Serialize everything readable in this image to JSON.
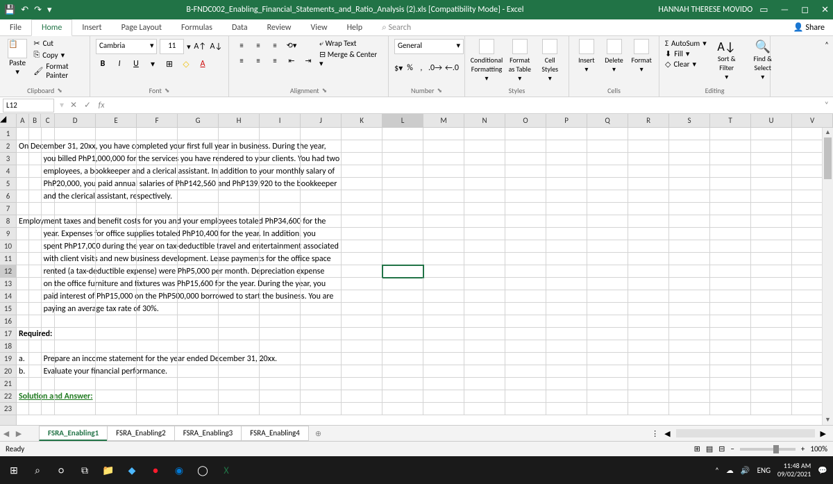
{
  "titlebar": {
    "title": "B-FNDC002_Enabling_Financial_Statements_and_Ratio_Analysis (2).xls  [Compatibility Mode]  -  Excel",
    "user": "HANNAH THERESE MOVIDO"
  },
  "tabs": {
    "items": [
      "File",
      "Home",
      "Insert",
      "Page Layout",
      "Formulas",
      "Data",
      "Review",
      "View",
      "Help"
    ],
    "active": 1,
    "search": "Search",
    "share": "Share"
  },
  "ribbon": {
    "clipboard": {
      "paste": "Paste",
      "cut": "Cut",
      "copy": "Copy",
      "fp": "Format Painter",
      "label": "Clipboard"
    },
    "font": {
      "name": "Cambria",
      "size": "11",
      "label": "Font"
    },
    "alignment": {
      "wrap": "Wrap Text",
      "merge": "Merge & Center",
      "label": "Alignment"
    },
    "number": {
      "format": "General",
      "label": "Number"
    },
    "styles": {
      "cond": "Conditional Formatting",
      "table": "Format as Table",
      "cell": "Cell Styles",
      "label": "Styles"
    },
    "cells": {
      "insert": "Insert",
      "delete": "Delete",
      "format": "Format",
      "label": "Cells"
    },
    "editing": {
      "sum": "AutoSum",
      "fill": "Fill",
      "clear": "Clear",
      "sort": "Sort & Filter",
      "find": "Find & Select",
      "label": "Editing"
    }
  },
  "formula_bar": {
    "cell_ref": "L12"
  },
  "columns": [
    {
      "l": "A",
      "w": 18
    },
    {
      "l": "B",
      "w": 18
    },
    {
      "l": "C",
      "w": 20
    },
    {
      "l": "D",
      "w": 60
    },
    {
      "l": "E",
      "w": 60
    },
    {
      "l": "F",
      "w": 60
    },
    {
      "l": "G",
      "w": 60
    },
    {
      "l": "H",
      "w": 60
    },
    {
      "l": "I",
      "w": 60
    },
    {
      "l": "J",
      "w": 60
    },
    {
      "l": "K",
      "w": 60
    },
    {
      "l": "L",
      "w": 60
    },
    {
      "l": "M",
      "w": 60
    },
    {
      "l": "N",
      "w": 60
    },
    {
      "l": "O",
      "w": 60
    },
    {
      "l": "P",
      "w": 60
    },
    {
      "l": "Q",
      "w": 60
    },
    {
      "l": "R",
      "w": 60
    },
    {
      "l": "S",
      "w": 60
    },
    {
      "l": "T",
      "w": 60
    },
    {
      "l": "U",
      "w": 60
    },
    {
      "l": "V",
      "w": 60
    }
  ],
  "rows": [
    {
      "n": 1,
      "cells": []
    },
    {
      "n": 2,
      "cells": [
        {
          "c": 0,
          "t": "On December 31, 20xx, you have completed your first full year in business.  During the year,"
        }
      ]
    },
    {
      "n": 3,
      "cells": [
        {
          "c": 2,
          "t": "you billed PhP1,000,000 for the services you have rendered to your clients.  You had two"
        }
      ]
    },
    {
      "n": 4,
      "cells": [
        {
          "c": 2,
          "t": "employees, a bookkeeper and a clerical assistant. In addition to your monthly salary of"
        }
      ]
    },
    {
      "n": 5,
      "cells": [
        {
          "c": 2,
          "t": "PhP20,000, you paid annual salaries of PhP142,560 and PhP139,920 to the bookkeeper"
        }
      ]
    },
    {
      "n": 6,
      "cells": [
        {
          "c": 2,
          "t": "and the clerical assistant, respectively."
        }
      ]
    },
    {
      "n": 7,
      "cells": []
    },
    {
      "n": 8,
      "cells": [
        {
          "c": 0,
          "t": "Employment taxes and benefit costs for you and your employees totaled PhP34,600 for the"
        }
      ]
    },
    {
      "n": 9,
      "cells": [
        {
          "c": 2,
          "t": "year.  Expenses for office supplies totaled PhP10,400 for the year.  In addition, you"
        }
      ]
    },
    {
      "n": 10,
      "cells": [
        {
          "c": 2,
          "t": "spent PhP17,000 during the year on tax-deductible travel and entertainment associated"
        }
      ]
    },
    {
      "n": 11,
      "cells": [
        {
          "c": 2,
          "t": "with client visits and new business development.  Lease payments for the office space"
        }
      ]
    },
    {
      "n": 12,
      "cells": [
        {
          "c": 2,
          "t": "rented (a tax-deductible expense) were PhP5,000 per month.  Depreciation expense"
        }
      ],
      "active_col": 11
    },
    {
      "n": 13,
      "cells": [
        {
          "c": 2,
          "t": "on the office furniture and fixtures was PhP15,600 for the year.  During the year, you"
        }
      ]
    },
    {
      "n": 14,
      "cells": [
        {
          "c": 2,
          "t": "paid interest of PhP15,000 on the PhP500,000 borrowed to start the business.  You are"
        }
      ]
    },
    {
      "n": 15,
      "cells": [
        {
          "c": 2,
          "t": "paying an average tax rate of 30%."
        }
      ]
    },
    {
      "n": 16,
      "cells": []
    },
    {
      "n": 17,
      "cells": [
        {
          "c": 0,
          "t": "Required:",
          "bold": true
        }
      ]
    },
    {
      "n": 18,
      "cells": []
    },
    {
      "n": 19,
      "cells": [
        {
          "c": 0,
          "t": "a."
        },
        {
          "c": 2,
          "t": "Prepare an income statement for the year ended December 31, 20xx."
        }
      ]
    },
    {
      "n": 20,
      "cells": [
        {
          "c": 0,
          "t": "b."
        },
        {
          "c": 2,
          "t": "Evaluate your financial performance."
        }
      ]
    },
    {
      "n": 21,
      "cells": []
    },
    {
      "n": 22,
      "cells": [
        {
          "c": 0,
          "t": "Solution and Answer:",
          "bold": true,
          "underline": true,
          "color": "#1f7a1f"
        }
      ]
    },
    {
      "n": 23,
      "cells": []
    }
  ],
  "sheet_tabs": {
    "items": [
      "FSRA_Enabling1",
      "FSRA_Enabling2",
      "FSRA_Enabling3",
      "FSRA_Enabling4"
    ],
    "active": 0
  },
  "status": {
    "ready": "Ready",
    "zoom": "100%"
  },
  "taskbar": {
    "lang": "ENG",
    "time": "11:48 AM",
    "date": "09/02/2021"
  }
}
